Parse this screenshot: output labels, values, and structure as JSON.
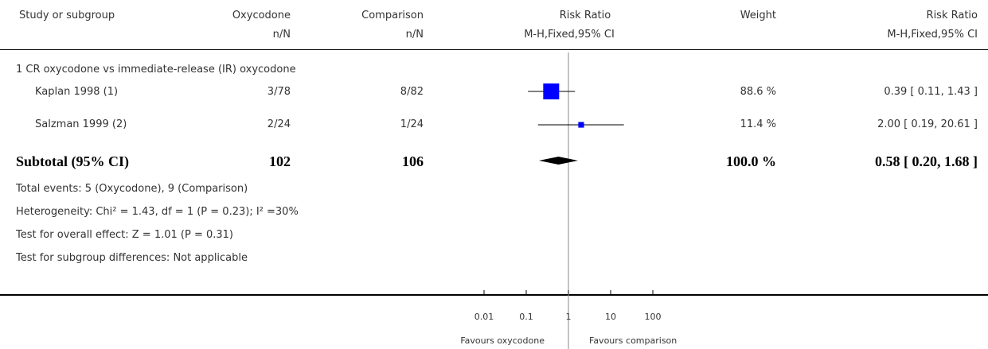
{
  "header": {
    "study": "Study or subgroup",
    "exp": "Oxycodone",
    "exp_sub": "n/N",
    "comp": "Comparison",
    "comp_sub": "n/N",
    "rr": "Risk Ratio",
    "rr_sub": "M-H,Fixed,95% CI",
    "weight": "Weight",
    "rr2": "Risk Ratio",
    "rr2_sub": "M-H,Fixed,95% CI"
  },
  "subgroup": {
    "title": "1 CR oxycodone vs immediate-release (IR) oxycodone"
  },
  "studies": [
    {
      "name": "Kaplan 1998 (1)",
      "exp": "3/78",
      "comp": "8/82",
      "weight": "88.6 %",
      "ci": "0.39 [ 0.11, 1.43 ]"
    },
    {
      "name": "Salzman 1999 (2)",
      "exp": "2/24",
      "comp": "1/24",
      "weight": "11.4 %",
      "ci": "2.00 [ 0.19, 20.61 ]"
    }
  ],
  "subtotal": {
    "label": "Subtotal (95% CI)",
    "exp": "102",
    "comp": "106",
    "weight": "100.0 %",
    "ci": "0.58 [ 0.20, 1.68 ]"
  },
  "notes": [
    "Total events: 5 (Oxycodone), 9 (Comparison)",
    "Heterogeneity: Chi² = 1.43, df = 1 (P = 0.23); I² =30%",
    "Test for overall effect: Z = 1.01 (P = 0.31)",
    "Test for subgroup differences: Not applicable"
  ],
  "axis": {
    "ticks": [
      "0.01",
      "0.1",
      "1",
      "10",
      "100"
    ],
    "favours_left": "Favours oxycodone",
    "favours_right": "Favours comparison"
  },
  "colors": {
    "marker": "#0000ff",
    "diamond": "#000000",
    "line": "#000000"
  },
  "chart_data": {
    "type": "forest",
    "scale": "log",
    "xlim": [
      0.01,
      100
    ],
    "x_ticks": [
      0.01,
      0.1,
      1,
      10,
      100
    ],
    "null_line": 1,
    "studies": [
      {
        "name": "Kaplan 1998 (1)",
        "rr": 0.39,
        "lo": 0.11,
        "hi": 1.43,
        "weight": 88.6
      },
      {
        "name": "Salzman 1999 (2)",
        "rr": 2.0,
        "lo": 0.19,
        "hi": 20.61,
        "weight": 11.4
      }
    ],
    "pooled": {
      "rr": 0.58,
      "lo": 0.2,
      "hi": 1.68
    }
  }
}
